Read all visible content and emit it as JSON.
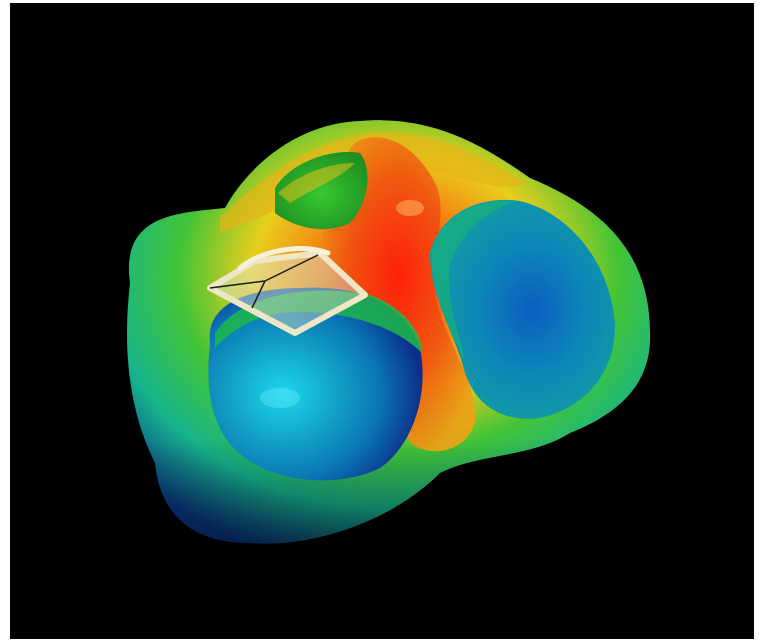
{
  "scene": {
    "background_color": "#000000",
    "frame_color": "#ffffff",
    "colormap": [
      "#1a3cff",
      "#16c6e6",
      "#22c64a",
      "#e2d21e",
      "#f08a12",
      "#e8200c"
    ],
    "probe_color": "#efe6c6"
  }
}
